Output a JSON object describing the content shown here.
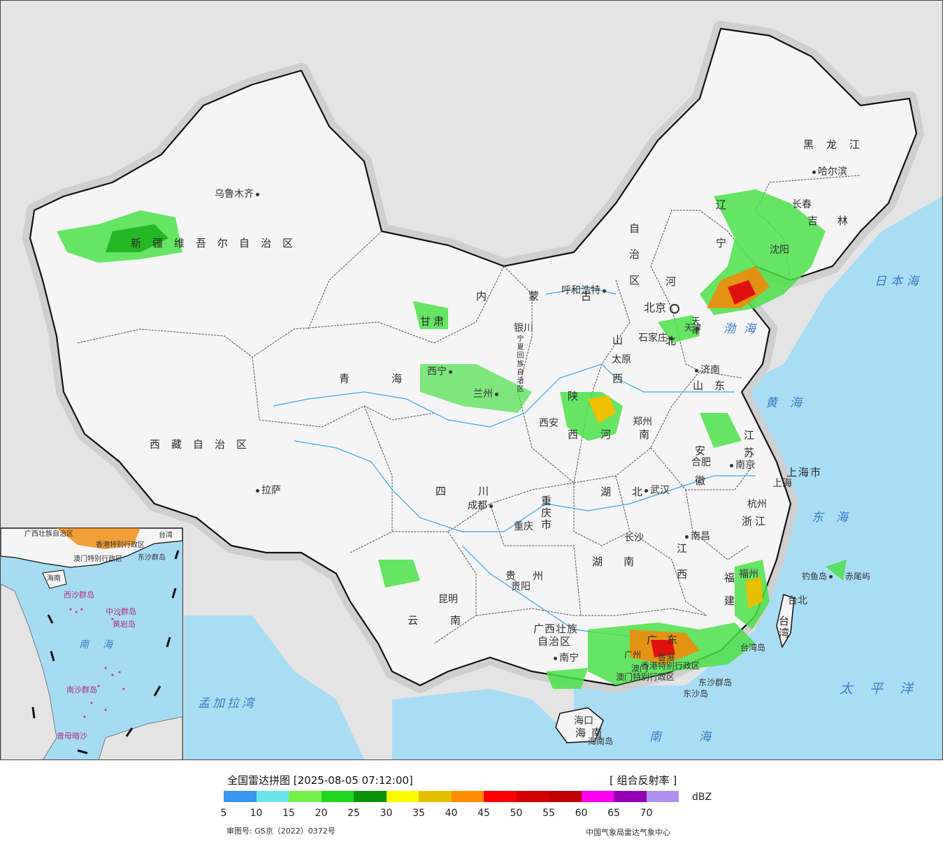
{
  "map": {
    "province_labels": [
      {
        "id": "xinjiang",
        "text": "新疆维吾尔自治区"
      },
      {
        "id": "tibet",
        "text": "西藏自治区"
      },
      {
        "id": "qinghai",
        "text": "青海"
      },
      {
        "id": "gansu",
        "text": "甘肃"
      },
      {
        "id": "neimenggu-1",
        "text": "内蒙古"
      },
      {
        "id": "neimenggu-2",
        "text": "自治区"
      },
      {
        "id": "ningxia",
        "text": "宁夏回族自治区"
      },
      {
        "id": "sichuan",
        "text": "四川"
      },
      {
        "id": "yunnan",
        "text": "云南"
      },
      {
        "id": "guizhou",
        "text": "贵州"
      },
      {
        "id": "chongqing",
        "text": "重庆市"
      },
      {
        "id": "shaanxi",
        "text": "陕西"
      },
      {
        "id": "shanxi",
        "text": "山西"
      },
      {
        "id": "hebei",
        "text": "河北"
      },
      {
        "id": "henan",
        "text": "河南"
      },
      {
        "id": "hubei",
        "text": "湖北"
      },
      {
        "id": "hunan",
        "text": "湖南"
      },
      {
        "id": "jiangxi",
        "text": "江西"
      },
      {
        "id": "shandong",
        "text": "山东"
      },
      {
        "id": "anhui",
        "text": "安徽"
      },
      {
        "id": "jiangsu",
        "text": "江苏"
      },
      {
        "id": "zhejiang",
        "text": "浙江"
      },
      {
        "id": "fujian",
        "text": "福建"
      },
      {
        "id": "guangdong",
        "text": "广东"
      },
      {
        "id": "guangxi-1",
        "text": "广西壮族"
      },
      {
        "id": "guangxi-2",
        "text": "自治区"
      },
      {
        "id": "hainan",
        "text": "海南"
      },
      {
        "id": "taiwan",
        "text": "台湾"
      },
      {
        "id": "heilongjiang",
        "text": "黑龙江"
      },
      {
        "id": "jilin",
        "text": "吉林"
      },
      {
        "id": "liaoning",
        "text": "辽宁"
      },
      {
        "id": "shanghai",
        "text": "上海市"
      },
      {
        "id": "tianjin",
        "text": "天津"
      },
      {
        "id": "hk",
        "text": "香港特别行政区"
      },
      {
        "id": "macau",
        "text": "澳门特别行政区"
      }
    ],
    "cities": [
      {
        "id": "urumqi",
        "text": "乌鲁木齐"
      },
      {
        "id": "lhasa",
        "text": "拉萨"
      },
      {
        "id": "xining",
        "text": "西宁"
      },
      {
        "id": "lanzhou",
        "text": "兰州"
      },
      {
        "id": "yinchuan",
        "text": "银川"
      },
      {
        "id": "hohhot",
        "text": "呼和浩特"
      },
      {
        "id": "beijing",
        "text": "北京"
      },
      {
        "id": "tianjin-city",
        "text": "天津"
      },
      {
        "id": "shijiazhuang",
        "text": "石家庄"
      },
      {
        "id": "taiyuan",
        "text": "太原"
      },
      {
        "id": "jinan",
        "text": "济南"
      },
      {
        "id": "xian",
        "text": "西安"
      },
      {
        "id": "zhengzhou",
        "text": "郑州"
      },
      {
        "id": "hefei",
        "text": "合肥"
      },
      {
        "id": "nanjing",
        "text": "南京"
      },
      {
        "id": "shanghai-city",
        "text": "上海"
      },
      {
        "id": "hangzhou",
        "text": "杭州"
      },
      {
        "id": "wuhan",
        "text": "武汉"
      },
      {
        "id": "chengdu",
        "text": "成都"
      },
      {
        "id": "chongqing-city",
        "text": "重庆"
      },
      {
        "id": "guiyang",
        "text": "贵阳"
      },
      {
        "id": "kunming",
        "text": "昆明"
      },
      {
        "id": "changsha",
        "text": "长沙"
      },
      {
        "id": "nanchang",
        "text": "南昌"
      },
      {
        "id": "fuzhou",
        "text": "福州"
      },
      {
        "id": "taipei",
        "text": "台北"
      },
      {
        "id": "guangzhou",
        "text": "广州"
      },
      {
        "id": "nanning",
        "text": "南宁"
      },
      {
        "id": "haikou",
        "text": "海口"
      },
      {
        "id": "harbin",
        "text": "哈尔滨"
      },
      {
        "id": "changchun",
        "text": "长春"
      },
      {
        "id": "shenyang",
        "text": "沈阳"
      },
      {
        "id": "hongkong-city",
        "text": "香港"
      },
      {
        "id": "macau-city",
        "text": "澳门"
      }
    ],
    "seas": [
      {
        "id": "bohai",
        "text": "渤海"
      },
      {
        "id": "huanghai",
        "text": "黄海"
      },
      {
        "id": "donghai",
        "text": "东海"
      },
      {
        "id": "nanhai",
        "text": "南海"
      },
      {
        "id": "taipingyang",
        "text": "太平洋"
      },
      {
        "id": "ribenhai",
        "text": "日本海"
      },
      {
        "id": "mengjiala",
        "text": "孟加拉湾"
      }
    ],
    "islands": [
      {
        "id": "diaoyu",
        "text": "钓鱼岛"
      },
      {
        "id": "chiwei",
        "text": "赤尾屿"
      },
      {
        "id": "taiwan-island",
        "text": "台湾岛"
      },
      {
        "id": "hainan-island",
        "text": "海南岛"
      },
      {
        "id": "dongsha-qd",
        "text": "东沙群岛"
      },
      {
        "id": "dongsha-d",
        "text": "东沙岛"
      }
    ],
    "inset": {
      "labels": [
        {
          "id": "in-guangxi",
          "text": "广西壮族自治区"
        },
        {
          "id": "in-taiwan",
          "text": "台湾"
        },
        {
          "id": "in-hk",
          "text": "香港特别行政区"
        },
        {
          "id": "in-macau",
          "text": "澳门特别行政区"
        },
        {
          "id": "in-dongsha",
          "text": "东沙群岛"
        },
        {
          "id": "in-hainan",
          "text": "海南"
        },
        {
          "id": "in-xisha",
          "text": "西沙群岛"
        },
        {
          "id": "in-zhongsha",
          "text": "中沙群岛"
        },
        {
          "id": "in-huangyan",
          "text": "黄岩岛"
        },
        {
          "id": "in-nanhai",
          "text": "南海"
        },
        {
          "id": "in-nansha",
          "text": "南沙群岛"
        },
        {
          "id": "in-zengmu",
          "text": "曾母暗沙"
        }
      ]
    }
  },
  "legend": {
    "title": "全国雷达拼图 [2025-08-05 07:12:00]",
    "product": "[ 组合反射率 ]",
    "unit": "dBZ",
    "colors": [
      "#3b96f0",
      "#6ae6ea",
      "#74f04a",
      "#1ed61e",
      "#0c930c",
      "#fbfb00",
      "#e5c000",
      "#ff8c00",
      "#ff0000",
      "#d50000",
      "#c00000",
      "#ff00f0",
      "#9600b4",
      "#ad90f0"
    ],
    "ticks": [
      "5",
      "10",
      "15",
      "20",
      "25",
      "30",
      "35",
      "40",
      "45",
      "50",
      "55",
      "60",
      "65",
      "70"
    ],
    "review_no": "审图号: GS京（2022）0372号",
    "producer": "中国气象局雷达气象中心"
  }
}
